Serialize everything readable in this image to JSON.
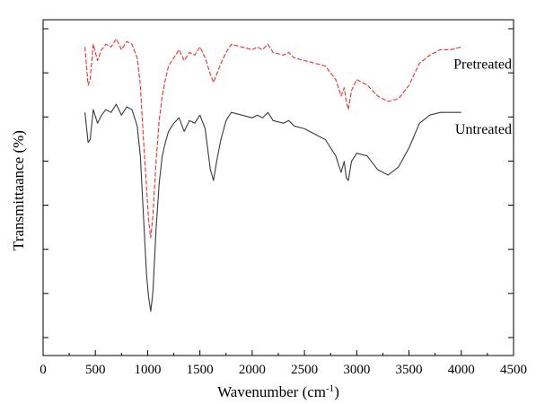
{
  "chart_data": {
    "type": "line",
    "xlabel": "Wavenumber (cm",
    "xlabel_sup": "-1",
    "xlabel_end": ")",
    "ylabel": "Transmittaance (%)",
    "xlim": [
      0,
      4500
    ],
    "x_ticks": [
      "0",
      "500",
      "1000",
      "1500",
      "2000",
      "2500",
      "3000",
      "3500",
      "4000",
      "4500"
    ],
    "y_tick_labels_shown": false,
    "grid": false,
    "colors": {
      "pretreated": "#e8312f",
      "untreated": "#3a3a3a",
      "axis": "#000000"
    },
    "series": [
      {
        "name": "Pretreated",
        "style": "dashed",
        "x": [
          400,
          430,
          450,
          480,
          520,
          560,
          600,
          650,
          700,
          750,
          800,
          850,
          900,
          930,
          960,
          990,
          1010,
          1030,
          1050,
          1080,
          1110,
          1140,
          1170,
          1200,
          1250,
          1300,
          1350,
          1400,
          1450,
          1500,
          1550,
          1600,
          1630,
          1660,
          1700,
          1750,
          1800,
          1900,
          2000,
          2050,
          2100,
          2150,
          2200,
          2300,
          2350,
          2400,
          2500,
          2600,
          2700,
          2800,
          2850,
          2880,
          2900,
          2920,
          2950,
          3000,
          3100,
          3200,
          3300,
          3400,
          3500,
          3600,
          3700,
          3800,
          3900,
          4000
        ],
        "y": [
          92,
          78,
          80,
          93,
          87,
          91,
          93,
          92,
          95,
          91,
          94,
          93,
          88,
          78,
          58,
          40,
          28,
          22,
          30,
          50,
          65,
          74,
          80,
          85,
          88,
          91,
          87,
          90,
          89,
          92,
          88,
          82,
          79,
          82,
          86,
          90,
          93,
          92,
          91,
          92,
          91,
          93,
          90,
          89,
          90,
          88,
          87,
          86,
          85,
          80,
          74,
          77,
          72,
          69,
          76,
          80,
          78,
          74,
          72,
          73,
          78,
          86,
          89,
          91,
          91,
          92
        ]
      },
      {
        "name": "Untreated",
        "style": "solid",
        "x": [
          400,
          430,
          450,
          480,
          520,
          560,
          600,
          650,
          700,
          750,
          800,
          850,
          900,
          930,
          960,
          990,
          1010,
          1030,
          1050,
          1080,
          1110,
          1140,
          1170,
          1200,
          1250,
          1300,
          1350,
          1400,
          1450,
          1500,
          1550,
          1600,
          1630,
          1660,
          1700,
          1750,
          1800,
          1900,
          2000,
          2050,
          2100,
          2150,
          2200,
          2300,
          2350,
          2400,
          2500,
          2600,
          2700,
          2800,
          2850,
          2880,
          2900,
          2920,
          2950,
          3000,
          3100,
          3200,
          3300,
          3400,
          3500,
          3600,
          3700,
          3800,
          3900,
          4000
        ],
        "y": [
          68,
          57,
          58,
          69,
          64,
          67,
          69,
          68,
          71,
          67,
          70,
          69,
          63,
          52,
          30,
          8,
          0,
          -5,
          2,
          25,
          42,
          52,
          57,
          61,
          64,
          66,
          61,
          65,
          64,
          67,
          62,
          47,
          43,
          50,
          58,
          65,
          68,
          67,
          66,
          67,
          66,
          68,
          65,
          64,
          65,
          63,
          62,
          60,
          58,
          52,
          46,
          50,
          44,
          43,
          50,
          53,
          52,
          47,
          45,
          48,
          55,
          64,
          67,
          68,
          68,
          68
        ]
      }
    ]
  }
}
